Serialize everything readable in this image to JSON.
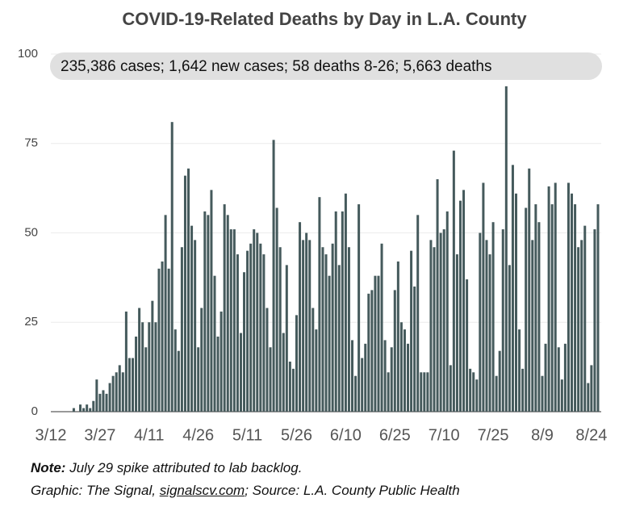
{
  "chart_data": {
    "type": "bar",
    "title": "COVID-19-Related Deaths by Day in L.A. County",
    "subtitle": "235,386 cases; 1,642 new cases; 58 deaths 8-26; 5,663 deaths",
    "categories": [
      "3/12",
      null,
      null,
      null,
      null,
      null,
      null,
      null,
      null,
      null,
      null,
      null,
      null,
      null,
      null,
      "3/27",
      null,
      null,
      null,
      null,
      null,
      null,
      null,
      null,
      null,
      null,
      null,
      null,
      null,
      null,
      "4/11",
      null,
      null,
      null,
      null,
      null,
      null,
      null,
      null,
      null,
      null,
      null,
      null,
      null,
      null,
      "4/26",
      null,
      null,
      null,
      null,
      null,
      null,
      null,
      null,
      null,
      null,
      null,
      null,
      null,
      null,
      "5/11",
      null,
      null,
      null,
      null,
      null,
      null,
      null,
      null,
      null,
      null,
      null,
      null,
      null,
      null,
      "5/26",
      null,
      null,
      null,
      null,
      null,
      null,
      null,
      null,
      null,
      null,
      null,
      null,
      null,
      null,
      "6/10",
      null,
      null,
      null,
      null,
      null,
      null,
      null,
      null,
      null,
      null,
      null,
      null,
      null,
      null,
      "6/25",
      null,
      null,
      null,
      null,
      null,
      null,
      null,
      null,
      null,
      null,
      null,
      null,
      null,
      null,
      "7/10",
      null,
      null,
      null,
      null,
      null,
      null,
      null,
      null,
      null,
      null,
      null,
      null,
      null,
      null,
      "7/25",
      null,
      null,
      null,
      null,
      null,
      null,
      null,
      null,
      null,
      null,
      null,
      null,
      null,
      null,
      "8/9",
      null,
      null,
      null,
      null,
      null,
      null,
      null,
      null,
      null,
      null,
      null,
      null,
      null,
      null,
      "8/24",
      null,
      null
    ],
    "values": [
      0,
      0,
      0,
      0,
      0,
      0,
      0,
      1,
      0,
      2,
      1,
      2,
      1,
      3,
      9,
      5,
      6,
      5,
      8,
      10,
      11,
      13,
      11,
      28,
      15,
      15,
      21,
      29,
      25,
      18,
      25,
      31,
      25,
      40,
      42,
      55,
      40,
      81,
      23,
      17,
      46,
      66,
      68,
      52,
      48,
      18,
      29,
      56,
      55,
      62,
      38,
      21,
      28,
      58,
      55,
      51,
      51,
      44,
      22,
      39,
      45,
      47,
      51,
      50,
      47,
      44,
      29,
      18,
      76,
      57,
      46,
      22,
      41,
      14,
      12,
      27,
      53,
      48,
      50,
      48,
      29,
      23,
      60,
      46,
      44,
      38,
      47,
      56,
      41,
      56,
      61,
      46,
      20,
      10,
      58,
      15,
      19,
      33,
      34,
      38,
      38,
      47,
      20,
      11,
      18,
      34,
      42,
      25,
      23,
      19,
      45,
      35,
      55,
      11,
      11,
      11,
      48,
      46,
      65,
      50,
      51,
      56,
      13,
      73,
      44,
      59,
      62,
      37,
      12,
      11,
      9,
      50,
      64,
      48,
      44,
      53,
      10,
      17,
      51,
      91,
      41,
      69,
      61,
      23,
      12,
      57,
      68,
      48,
      58,
      53,
      10,
      19,
      63,
      58,
      64,
      18,
      9,
      19,
      64,
      61,
      58,
      46,
      48,
      52,
      8,
      13,
      51,
      58
    ],
    "color": "#455a5c",
    "ylim": [
      0,
      100
    ],
    "yticks": [
      0,
      25,
      50,
      75,
      100
    ],
    "grid": true,
    "note": {
      "label": "Note:",
      "text": "July 29 spike attributed to lab backlog."
    },
    "source": {
      "before": "Graphic: The Signal,",
      "link": "signalscv.com",
      "after": "; Source: L.A. County Public Health"
    }
  }
}
